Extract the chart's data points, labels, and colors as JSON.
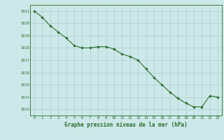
{
  "x": [
    0,
    1,
    2,
    3,
    4,
    5,
    6,
    7,
    8,
    9,
    10,
    11,
    12,
    13,
    14,
    15,
    16,
    17,
    18,
    19,
    20,
    21,
    22,
    23
  ],
  "y": [
    1021.0,
    1020.5,
    1019.8,
    1019.3,
    1018.8,
    1018.2,
    1018.0,
    1018.0,
    1018.1,
    1018.1,
    1017.9,
    1017.5,
    1017.3,
    1017.0,
    1016.3,
    1015.6,
    1015.0,
    1014.4,
    1013.9,
    1013.5,
    1013.2,
    1013.2,
    1014.1,
    1014.0
  ],
  "line_color": "#2d6e2d",
  "marker": "D",
  "marker_size": 1.8,
  "bg_color": "#cce8e8",
  "grid_color": "#aacece",
  "ylim": [
    1012.5,
    1021.5
  ],
  "yticks": [
    1013,
    1014,
    1015,
    1016,
    1017,
    1018,
    1019,
    1020,
    1021
  ],
  "xticks": [
    0,
    1,
    2,
    3,
    4,
    5,
    6,
    7,
    8,
    9,
    10,
    11,
    12,
    13,
    14,
    15,
    16,
    17,
    18,
    19,
    20,
    21,
    22,
    23
  ],
  "xlabel": "Graphe pression niveau de la mer (hPa)",
  "xlabel_color": "#2d6e2d",
  "tick_color": "#2d6e2d",
  "axis_color": "#2d6e2d",
  "tick_fontsize": 4.0,
  "xlabel_fontsize": 5.5,
  "linewidth": 0.8
}
